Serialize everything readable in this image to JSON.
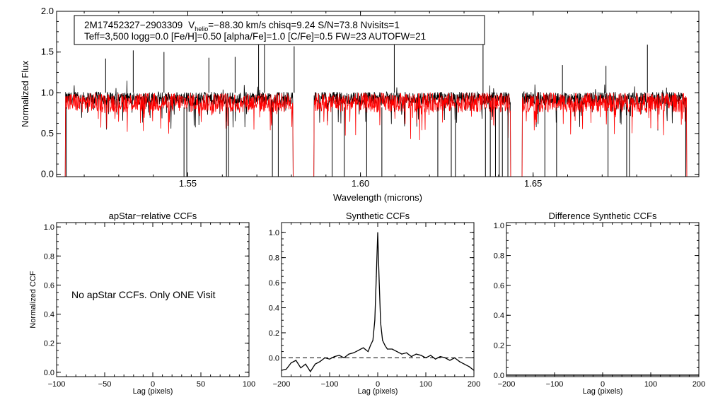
{
  "figure": {
    "info_line1_a": "2M17452327−2903309",
    "info_vhelio_symbol": "V",
    "info_vhelio_sub": "helio",
    "info_line1_b": "=−88.30 km/s  chisq=9.24  S/N=73.8  Nvisits=1",
    "info_line2": "Teff=3,500 logg=0.0 [Fe/H]=0.50 [alpha/Fe]=1.0 [C/Fe]=0.5 FW=23 AUTOFW=21",
    "no_ccf_message": "No apStar CCFs.  Only ONE Visit"
  },
  "colors": {
    "observed": "#000000",
    "model": "#ff0000",
    "axis": "#000000"
  },
  "chart_data": [
    {
      "type": "line",
      "name": "spectrum",
      "title": "",
      "xlabel": "Wavelength (microns)",
      "ylabel": "Normalized Flux",
      "xlim": [
        1.512,
        1.698
      ],
      "ylim": [
        -0.03,
        2.0
      ],
      "xticks": [
        1.55,
        1.6,
        1.65
      ],
      "xtick_labels": [
        "1.55",
        "1.60",
        "1.65"
      ],
      "yticks": [
        0.0,
        0.5,
        1.0,
        1.5,
        2.0
      ],
      "ytick_labels": [
        "0.0",
        "0.5",
        "1.0",
        "1.5",
        "2.0"
      ],
      "chips": [
        [
          1.5145,
          1.5805
        ],
        [
          1.5865,
          1.6435
        ],
        [
          1.6468,
          1.6945
        ]
      ],
      "series": [
        {
          "name": "observed",
          "color": "#000000",
          "mean": 0.93,
          "amplitude": 0.08
        },
        {
          "name": "model",
          "color": "#ff0000",
          "mean": 0.88,
          "amplitude": 0.12
        }
      ],
      "deep_lines": [
        1.5148,
        1.5489,
        1.5497,
        1.5612,
        1.5618,
        1.5745,
        1.5762,
        1.5918,
        1.5953,
        1.6018,
        1.6062,
        1.6224,
        1.6263,
        1.6275,
        1.6362,
        1.6376,
        1.6391,
        1.6402,
        1.6411,
        1.6427,
        1.6534,
        1.6568,
        1.6717,
        1.6771,
        1.6779,
        1.6942
      ],
      "spikes": [
        {
          "x": 1.5262,
          "y": 1.42
        },
        {
          "x": 1.5342,
          "y": 1.52
        },
        {
          "x": 1.5431,
          "y": 1.5
        },
        {
          "x": 1.5561,
          "y": 1.43
        },
        {
          "x": 1.5637,
          "y": 1.44
        },
        {
          "x": 1.5705,
          "y": 1.96
        },
        {
          "x": 1.5722,
          "y": 1.63
        },
        {
          "x": 1.5808,
          "y": 1.57
        },
        {
          "x": 1.6098,
          "y": 1.65
        },
        {
          "x": 1.6355,
          "y": 1.63
        },
        {
          "x": 1.6585,
          "y": 1.34
        },
        {
          "x": 1.6711,
          "y": 1.33
        },
        {
          "x": 1.6831,
          "y": 1.59
        }
      ]
    },
    {
      "type": "line",
      "name": "apstar-ccf",
      "title": "apStar−relative CCFs",
      "xlabel": "Lag (pixels)",
      "ylabel": "Normalized CCF",
      "xlim": [
        -100,
        100
      ],
      "ylim": [
        -0.03,
        1.03
      ],
      "xticks": [
        -100,
        -50,
        0,
        50,
        100
      ],
      "xtick_labels": [
        "−100",
        "−50",
        "0",
        "50",
        "100"
      ],
      "yticks": [
        0.0,
        0.2,
        0.4,
        0.6,
        0.8,
        1.0
      ],
      "ytick_labels": [
        "0.0",
        "0.2",
        "0.4",
        "0.6",
        "0.8",
        "1.0"
      ],
      "series": []
    },
    {
      "type": "line",
      "name": "synthetic-ccf",
      "title": "Synthetic CCFs",
      "xlabel": "Lag (pixels)",
      "ylabel": "",
      "xlim": [
        -200,
        200
      ],
      "ylim": [
        -0.15,
        1.08
      ],
      "xticks": [
        -200,
        -100,
        0,
        100,
        200
      ],
      "xtick_labels": [
        "−200",
        "−100",
        "0",
        "100",
        "200"
      ],
      "yticks": [
        0.0,
        0.2,
        0.4,
        0.6,
        0.8,
        1.0
      ],
      "ytick_labels": [
        "0.0",
        "0.2",
        "0.4",
        "0.6",
        "0.8",
        "1.0"
      ],
      "reference_line": 0.0,
      "series": [
        {
          "name": "ccf",
          "x": [
            -200,
            -190,
            -180,
            -170,
            -160,
            -150,
            -140,
            -130,
            -120,
            -110,
            -100,
            -90,
            -80,
            -70,
            -60,
            -50,
            -40,
            -30,
            -20,
            -15,
            -10,
            -6,
            -3,
            0,
            3,
            6,
            10,
            15,
            20,
            30,
            40,
            50,
            60,
            70,
            80,
            90,
            100,
            110,
            120,
            130,
            140,
            150,
            160,
            170,
            180,
            190,
            200
          ],
          "y": [
            -0.1,
            -0.09,
            -0.04,
            -0.02,
            -0.08,
            -0.05,
            -0.11,
            -0.05,
            -0.03,
            0.0,
            -0.01,
            0.01,
            0.02,
            0.0,
            0.03,
            0.04,
            0.06,
            0.08,
            0.05,
            0.1,
            0.14,
            0.3,
            0.65,
            1.0,
            0.62,
            0.28,
            0.14,
            0.1,
            0.07,
            0.07,
            0.05,
            0.03,
            0.04,
            0.01,
            0.03,
            0.02,
            0.0,
            0.02,
            -0.01,
            0.01,
            0.0,
            -0.02,
            0.0,
            -0.03,
            -0.05,
            -0.07,
            -0.1
          ]
        }
      ]
    },
    {
      "type": "line",
      "name": "difference-ccf",
      "title": "Difference Synthetic CCFs",
      "xlabel": "Lag (pixels)",
      "ylabel": "",
      "xlim": [
        -200,
        200
      ],
      "ylim": [
        -0.01,
        1.02
      ],
      "xticks": [
        -200,
        -100,
        0,
        100,
        200
      ],
      "xtick_labels": [
        "−200",
        "−100",
        "0",
        "100",
        "200"
      ],
      "yticks": [
        0.0,
        0.2,
        0.4,
        0.6,
        0.8,
        1.0
      ],
      "ytick_labels": [
        "0.0",
        "0.2",
        "0.4",
        "0.6",
        "0.8",
        "1.0"
      ],
      "series": [
        {
          "name": "difference",
          "x": [
            -200,
            -100,
            0,
            100,
            200
          ],
          "y": [
            0.0,
            0.0,
            0.0,
            0.0,
            0.0
          ]
        }
      ]
    }
  ]
}
